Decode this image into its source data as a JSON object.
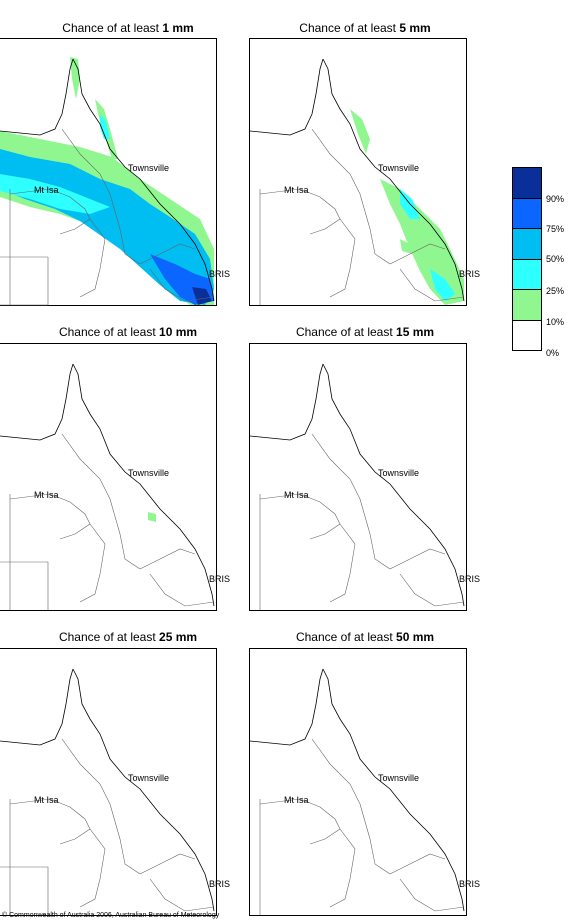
{
  "panels": [
    {
      "prefix": "Chance of at least ",
      "amount": "1 mm"
    },
    {
      "prefix": "Chance of at least ",
      "amount": "5 mm"
    },
    {
      "prefix": "Chance of at least ",
      "amount": "10 mm"
    },
    {
      "prefix": "Chance of at least ",
      "amount": "15 mm"
    },
    {
      "prefix": "Chance of at least ",
      "amount": "25 mm"
    },
    {
      "prefix": "Chance of at least ",
      "amount": "50 mm"
    }
  ],
  "places": {
    "townsville": "Townsville",
    "mt_isa": "Mt Isa",
    "bris": "BRIS"
  },
  "legend": {
    "labels": [
      "90%",
      "75%",
      "50%",
      "25%",
      "10%",
      "0%"
    ],
    "colors": [
      "#0a2f99",
      "#0a66ff",
      "#00bdf2",
      "#2effff",
      "#90f790",
      "#ffffff"
    ]
  },
  "copyright": "© Commonwealth of Australia 2006, Australian Bureau of Meteorology"
}
